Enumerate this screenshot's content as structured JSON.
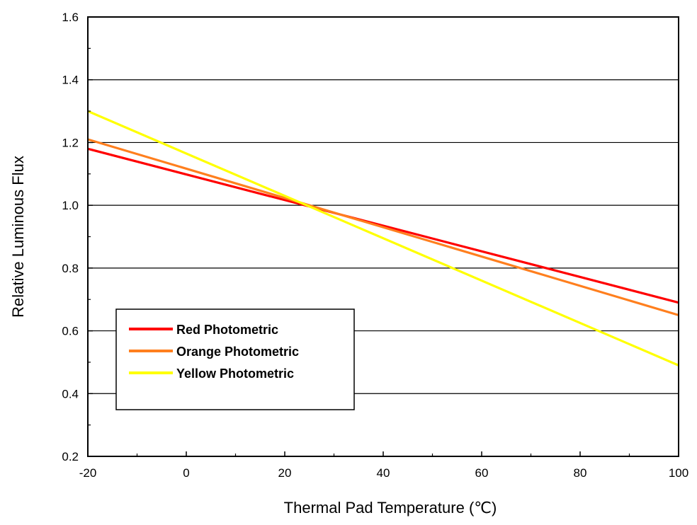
{
  "chart_data": {
    "type": "line",
    "xlabel": "Thermal Pad Temperature (℃)",
    "ylabel": "Relative Luminous Flux",
    "xlim": [
      -20,
      100
    ],
    "ylim": [
      0.2,
      1.6
    ],
    "x_ticks": [
      -20,
      0,
      20,
      40,
      60,
      80,
      100
    ],
    "x_tick_labels": [
      "-20",
      "0",
      "20",
      "40",
      "60",
      "80",
      "100"
    ],
    "y_ticks": [
      0.2,
      0.4,
      0.6,
      0.8,
      1.0,
      1.2,
      1.4,
      1.6
    ],
    "y_tick_labels": [
      "0.2",
      "0.4",
      "0.6",
      "0.8",
      "1.0",
      "1.2",
      "1.4",
      "1.6"
    ],
    "grid": "horizontal",
    "legend_position": "bottom-left",
    "series": [
      {
        "name": "Red Photometric",
        "color": "#ff0000",
        "x": [
          -20,
          100
        ],
        "y": [
          1.18,
          0.69
        ]
      },
      {
        "name": "Orange Photometric",
        "color": "#ff7f1e",
        "x": [
          -20,
          100
        ],
        "y": [
          1.21,
          0.65
        ]
      },
      {
        "name": "Yellow Photometric",
        "color": "#ffff00",
        "x": [
          -20,
          100
        ],
        "y": [
          1.3,
          0.49
        ]
      }
    ]
  }
}
